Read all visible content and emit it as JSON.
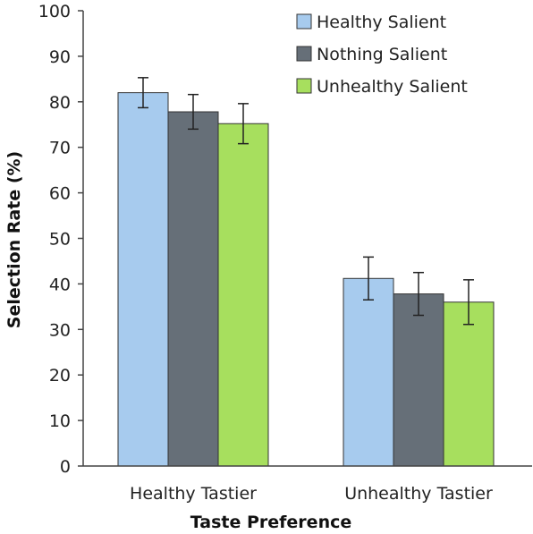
{
  "chart_data": {
    "type": "bar",
    "title": "",
    "xlabel": "Taste Preference",
    "ylabel": "Selection Rate (%)",
    "ylim": [
      0,
      100
    ],
    "yticks": [
      0,
      10,
      20,
      30,
      40,
      50,
      60,
      70,
      80,
      90,
      100
    ],
    "grid": false,
    "legend_position": "top-right",
    "categories": [
      "Healthy Tastier",
      "Unhealthy Tastier"
    ],
    "series": [
      {
        "name": "Healthy Salient",
        "values": [
          82.0,
          41.2
        ],
        "errors": [
          3.3,
          4.7
        ],
        "color": "#a7cbee"
      },
      {
        "name": "Nothing Salient",
        "values": [
          77.8,
          37.8
        ],
        "errors": [
          3.8,
          4.7
        ],
        "color": "#666f78"
      },
      {
        "name": "Unhealthy Salient",
        "values": [
          75.2,
          36.0
        ],
        "errors": [
          4.4,
          4.9
        ],
        "color": "#a7df5e"
      }
    ]
  }
}
